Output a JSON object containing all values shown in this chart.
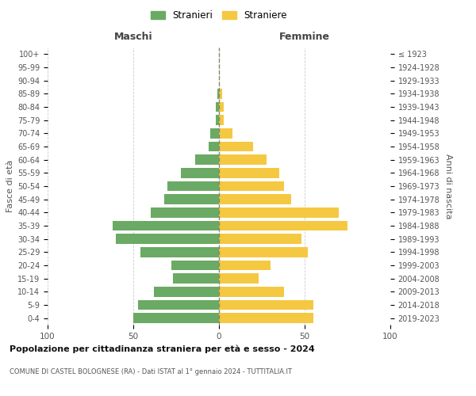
{
  "age_groups": [
    "0-4",
    "5-9",
    "10-14",
    "15-19",
    "20-24",
    "25-29",
    "30-34",
    "35-39",
    "40-44",
    "45-49",
    "50-54",
    "55-59",
    "60-64",
    "65-69",
    "70-74",
    "75-79",
    "80-84",
    "85-89",
    "90-94",
    "95-99",
    "100+"
  ],
  "birth_years": [
    "2019-2023",
    "2014-2018",
    "2009-2013",
    "2004-2008",
    "1999-2003",
    "1994-1998",
    "1989-1993",
    "1984-1988",
    "1979-1983",
    "1974-1978",
    "1969-1973",
    "1964-1968",
    "1959-1963",
    "1954-1958",
    "1949-1953",
    "1944-1948",
    "1939-1943",
    "1934-1938",
    "1929-1933",
    "1924-1928",
    "≤ 1923"
  ],
  "maschi": [
    50,
    47,
    38,
    27,
    28,
    46,
    60,
    62,
    40,
    32,
    30,
    22,
    14,
    6,
    5,
    2,
    2,
    1,
    0,
    0,
    0
  ],
  "femmine": [
    55,
    55,
    38,
    23,
    30,
    52,
    48,
    75,
    70,
    42,
    38,
    35,
    28,
    20,
    8,
    3,
    3,
    2,
    0,
    0,
    0
  ],
  "male_color": "#6aaa64",
  "female_color": "#f5c842",
  "grid_color": "#cccccc",
  "center_line_color": "#888866",
  "title": "Popolazione per cittadinanza straniera per età e sesso - 2024",
  "subtitle": "COMUNE DI CASTEL BOLOGNESE (RA) - Dati ISTAT al 1° gennaio 2024 - TUTTITALIA.IT",
  "xlabel_left": "Maschi",
  "xlabel_right": "Femmine",
  "ylabel_left": "Fasce di età",
  "ylabel_right": "Anni di nascita",
  "legend_male": "Stranieri",
  "legend_female": "Straniere",
  "xlim": 100
}
